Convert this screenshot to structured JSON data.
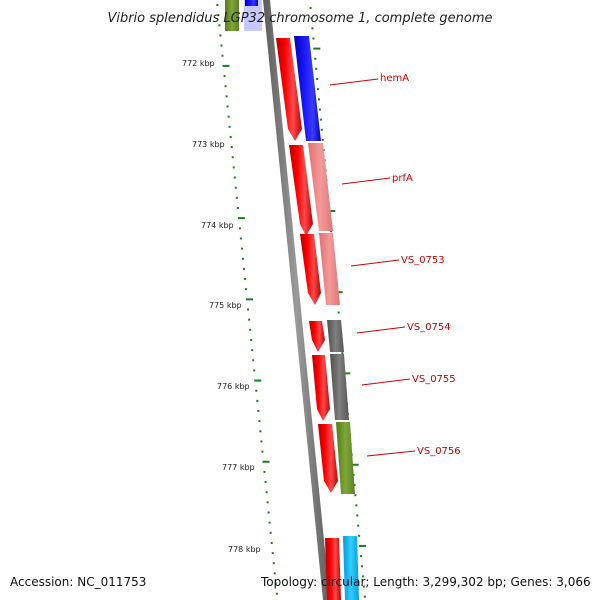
{
  "title": "Vibrio splendidus LGP32 chromosome 1, complete genome",
  "footer": {
    "accession_label": "Accession:",
    "accession": "NC_011753",
    "topology_text": "Topology: circular; Length: 3,299,302 bp; Genes: 3,066"
  },
  "scale_labels": [
    "772 kbp",
    "773 kbp",
    "774 kbp",
    "775 kbp",
    "776 kbp",
    "777 kbp",
    "778 kbp"
  ],
  "gene_labels": [
    "hemA",
    "prfA",
    "VS_0753",
    "VS_0754",
    "VS_0755",
    "VS_0756"
  ],
  "colors": {
    "strand_red": "#ff0000",
    "blue": "#0000ff",
    "pink": "#f08080",
    "gray": "#6f6f6f",
    "olive": "#6b8e23",
    "cyan": "#00bfff",
    "tick_green": "#1a7f1a",
    "label_red": "#cc0000",
    "backbone": "#808080"
  }
}
